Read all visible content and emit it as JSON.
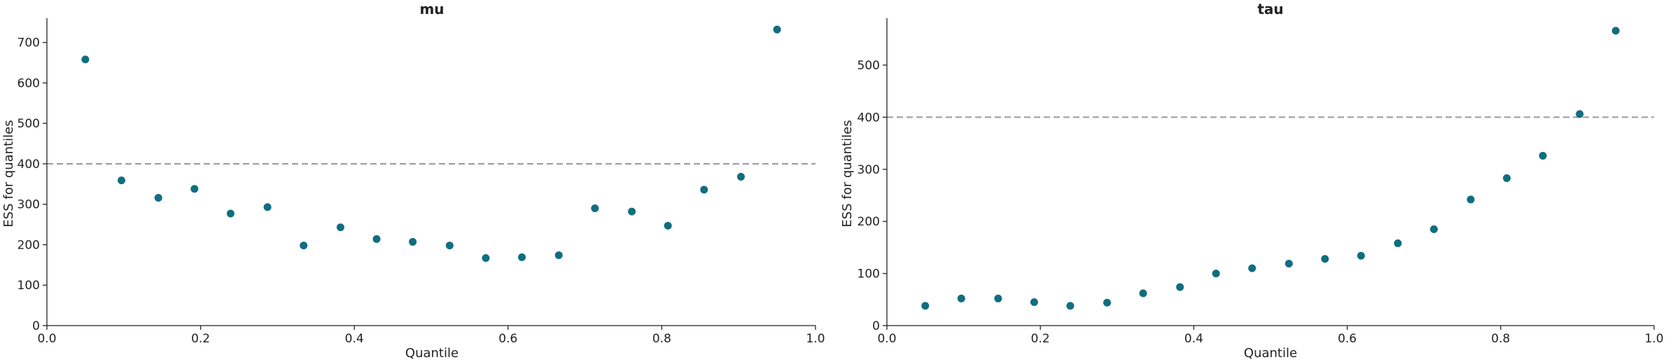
{
  "chart_data": [
    {
      "type": "scatter",
      "title": "mu",
      "xlabel": "Quantile",
      "ylabel": "ESS for quantiles",
      "xlim": [
        0.0,
        1.0
      ],
      "ylim": [
        0,
        760
      ],
      "xticks": [
        "0.0",
        "0.2",
        "0.4",
        "0.6",
        "0.8",
        "1.0"
      ],
      "yticks": [
        "0",
        "100",
        "200",
        "300",
        "400",
        "500",
        "600",
        "700"
      ],
      "reference_line": 400,
      "grid": false,
      "point_color": "#0f6e80",
      "x": [
        0.05,
        0.097,
        0.145,
        0.192,
        0.239,
        0.287,
        0.334,
        0.382,
        0.429,
        0.476,
        0.524,
        0.571,
        0.618,
        0.666,
        0.713,
        0.761,
        0.808,
        0.855,
        0.903,
        0.95
      ],
      "y": [
        658,
        359,
        316,
        338,
        277,
        293,
        198,
        243,
        214,
        207,
        198,
        167,
        169,
        174,
        290,
        282,
        247,
        336,
        368,
        732
      ]
    },
    {
      "type": "scatter",
      "title": "tau",
      "xlabel": "Quantile",
      "ylabel": "ESS for quantiles",
      "xlim": [
        0.0,
        1.0
      ],
      "ylim": [
        0,
        590
      ],
      "xticks": [
        "0.0",
        "0.2",
        "0.4",
        "0.6",
        "0.8",
        "1.0"
      ],
      "yticks": [
        "0",
        "100",
        "200",
        "300",
        "400",
        "500"
      ],
      "reference_line": 400,
      "grid": false,
      "point_color": "#0f6e80",
      "x": [
        0.05,
        0.097,
        0.145,
        0.192,
        0.239,
        0.287,
        0.334,
        0.382,
        0.429,
        0.476,
        0.524,
        0.571,
        0.618,
        0.666,
        0.713,
        0.761,
        0.808,
        0.855,
        0.903,
        0.95
      ],
      "y": [
        38,
        52,
        52,
        45,
        38,
        44,
        62,
        74,
        100,
        110,
        119,
        128,
        134,
        158,
        185,
        242,
        283,
        326,
        406,
        566
      ]
    }
  ]
}
